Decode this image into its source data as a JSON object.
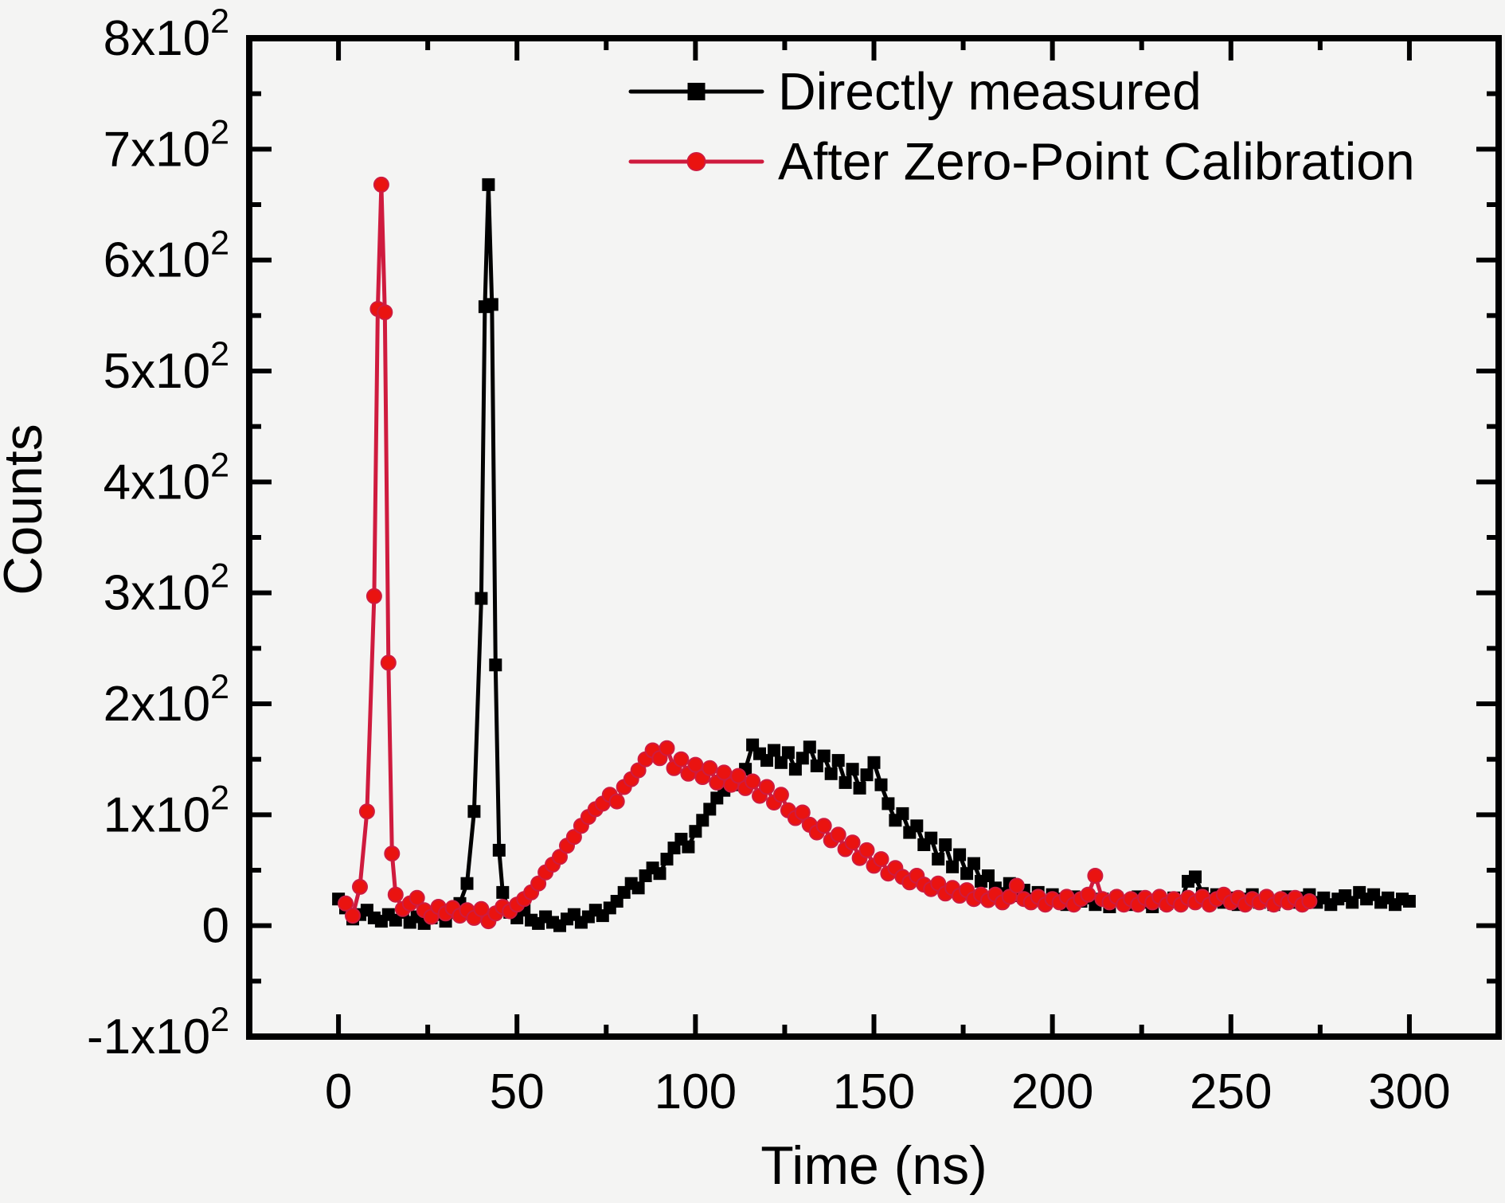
{
  "figure": {
    "background_color": "#f4f4f3",
    "frame_color": "#000000",
    "text_color": "#000000"
  },
  "chart_data": {
    "type": "line",
    "title": "",
    "xlabel": "Time (ns)",
    "ylabel": "Counts",
    "xlim": [
      -25,
      325
    ],
    "ylim": [
      -100,
      800
    ],
    "grid": false,
    "legend_position": "top-center-inside",
    "x_major_ticks": [
      0,
      50,
      100,
      150,
      200,
      250,
      300
    ],
    "x_major_tick_labels": [
      "0",
      "50",
      "100",
      "150",
      "200",
      "250",
      "300"
    ],
    "x_minor_tick_step": 25,
    "y_major_ticks": [
      -100,
      0,
      100,
      200,
      300,
      400,
      500,
      600,
      700,
      800
    ],
    "y_major_tick_labels": [
      "-1x10^2",
      "0",
      "1x10^2",
      "2x10^2",
      "3x10^2",
      "4x10^2",
      "5x10^2",
      "6x10^2",
      "7x10^2",
      "8x10^2"
    ],
    "y_minor_tick_step": 50,
    "series": [
      {
        "name": "Directly measured",
        "marker": "square",
        "line_color": "#000000",
        "marker_color": "#000000",
        "points": [
          [
            0,
            24
          ],
          [
            2,
            16
          ],
          [
            4,
            6
          ],
          [
            6,
            10
          ],
          [
            8,
            14
          ],
          [
            10,
            7
          ],
          [
            12,
            4
          ],
          [
            14,
            10
          ],
          [
            16,
            5
          ],
          [
            18,
            12
          ],
          [
            20,
            3
          ],
          [
            22,
            8
          ],
          [
            24,
            2
          ],
          [
            26,
            7
          ],
          [
            28,
            10
          ],
          [
            30,
            4
          ],
          [
            32,
            12
          ],
          [
            34,
            20
          ],
          [
            36,
            38
          ],
          [
            38,
            103
          ],
          [
            40,
            295
          ],
          [
            41,
            558
          ],
          [
            42,
            668
          ],
          [
            43,
            560
          ],
          [
            44,
            235
          ],
          [
            45,
            68
          ],
          [
            46,
            30
          ],
          [
            48,
            12
          ],
          [
            50,
            7
          ],
          [
            52,
            14
          ],
          [
            54,
            5
          ],
          [
            56,
            2
          ],
          [
            58,
            8
          ],
          [
            60,
            3
          ],
          [
            62,
            0
          ],
          [
            64,
            6
          ],
          [
            66,
            10
          ],
          [
            68,
            3
          ],
          [
            70,
            8
          ],
          [
            72,
            14
          ],
          [
            74,
            9
          ],
          [
            76,
            16
          ],
          [
            78,
            22
          ],
          [
            80,
            30
          ],
          [
            82,
            38
          ],
          [
            84,
            34
          ],
          [
            86,
            45
          ],
          [
            88,
            52
          ],
          [
            90,
            47
          ],
          [
            92,
            60
          ],
          [
            94,
            70
          ],
          [
            96,
            78
          ],
          [
            98,
            71
          ],
          [
            100,
            85
          ],
          [
            102,
            95
          ],
          [
            104,
            105
          ],
          [
            106,
            115
          ],
          [
            108,
            122
          ],
          [
            110,
            133
          ],
          [
            112,
            127
          ],
          [
            114,
            141
          ],
          [
            116,
            163
          ],
          [
            118,
            155
          ],
          [
            120,
            149
          ],
          [
            122,
            158
          ],
          [
            124,
            147
          ],
          [
            126,
            156
          ],
          [
            128,
            141
          ],
          [
            130,
            151
          ],
          [
            132,
            161
          ],
          [
            134,
            144
          ],
          [
            136,
            153
          ],
          [
            138,
            137
          ],
          [
            140,
            149
          ],
          [
            142,
            129
          ],
          [
            144,
            141
          ],
          [
            146,
            124
          ],
          [
            148,
            136
          ],
          [
            150,
            147
          ],
          [
            152,
            127
          ],
          [
            154,
            110
          ],
          [
            156,
            95
          ],
          [
            158,
            101
          ],
          [
            160,
            84
          ],
          [
            162,
            90
          ],
          [
            164,
            73
          ],
          [
            166,
            79
          ],
          [
            168,
            60
          ],
          [
            170,
            73
          ],
          [
            172,
            53
          ],
          [
            174,
            64
          ],
          [
            176,
            47
          ],
          [
            178,
            56
          ],
          [
            180,
            40
          ],
          [
            182,
            45
          ],
          [
            184,
            34
          ],
          [
            186,
            29
          ],
          [
            188,
            38
          ],
          [
            190,
            27
          ],
          [
            192,
            32
          ],
          [
            194,
            24
          ],
          [
            196,
            30
          ],
          [
            198,
            21
          ],
          [
            200,
            28
          ],
          [
            202,
            24
          ],
          [
            204,
            19
          ],
          [
            206,
            26
          ],
          [
            208,
            22
          ],
          [
            210,
            25
          ],
          [
            212,
            19
          ],
          [
            214,
            24
          ],
          [
            216,
            17
          ],
          [
            218,
            25
          ],
          [
            220,
            22
          ],
          [
            222,
            19
          ],
          [
            224,
            26
          ],
          [
            226,
            21
          ],
          [
            228,
            17
          ],
          [
            230,
            24
          ],
          [
            232,
            20
          ],
          [
            234,
            25
          ],
          [
            236,
            22
          ],
          [
            238,
            40
          ],
          [
            240,
            44
          ],
          [
            242,
            29
          ],
          [
            244,
            24
          ],
          [
            246,
            28
          ],
          [
            248,
            21
          ],
          [
            250,
            25
          ],
          [
            252,
            19
          ],
          [
            254,
            24
          ],
          [
            256,
            28
          ],
          [
            258,
            21
          ],
          [
            260,
            25
          ],
          [
            262,
            19
          ],
          [
            264,
            23
          ],
          [
            266,
            26
          ],
          [
            268,
            21
          ],
          [
            270,
            25
          ],
          [
            272,
            28
          ],
          [
            274,
            21
          ],
          [
            276,
            25
          ],
          [
            278,
            19
          ],
          [
            280,
            24
          ],
          [
            282,
            27
          ],
          [
            284,
            21
          ],
          [
            286,
            30
          ],
          [
            288,
            24
          ],
          [
            290,
            28
          ],
          [
            292,
            21
          ],
          [
            294,
            25
          ],
          [
            296,
            19
          ],
          [
            298,
            24
          ],
          [
            300,
            22
          ]
        ]
      },
      {
        "name": "After Zero-Point Calibration",
        "marker": "circle",
        "line_color": "#cf1b3e",
        "marker_color": "#ea1310",
        "points": [
          [
            2,
            20
          ],
          [
            4,
            9
          ],
          [
            6,
            35
          ],
          [
            8,
            103
          ],
          [
            10,
            297
          ],
          [
            11,
            556
          ],
          [
            12,
            668
          ],
          [
            13,
            553
          ],
          [
            14,
            237
          ],
          [
            15,
            65
          ],
          [
            16,
            28
          ],
          [
            18,
            15
          ],
          [
            20,
            20
          ],
          [
            22,
            25
          ],
          [
            24,
            14
          ],
          [
            26,
            8
          ],
          [
            28,
            17
          ],
          [
            30,
            11
          ],
          [
            32,
            16
          ],
          [
            34,
            9
          ],
          [
            36,
            14
          ],
          [
            38,
            7
          ],
          [
            40,
            15
          ],
          [
            42,
            4
          ],
          [
            44,
            11
          ],
          [
            46,
            17
          ],
          [
            48,
            13
          ],
          [
            50,
            19
          ],
          [
            52,
            24
          ],
          [
            54,
            30
          ],
          [
            56,
            38
          ],
          [
            58,
            48
          ],
          [
            60,
            55
          ],
          [
            62,
            62
          ],
          [
            64,
            72
          ],
          [
            66,
            80
          ],
          [
            68,
            90
          ],
          [
            70,
            98
          ],
          [
            72,
            105
          ],
          [
            74,
            110
          ],
          [
            76,
            118
          ],
          [
            78,
            112
          ],
          [
            80,
            125
          ],
          [
            82,
            132
          ],
          [
            84,
            140
          ],
          [
            86,
            150
          ],
          [
            88,
            158
          ],
          [
            90,
            151
          ],
          [
            92,
            160
          ],
          [
            94,
            142
          ],
          [
            96,
            150
          ],
          [
            98,
            137
          ],
          [
            100,
            145
          ],
          [
            102,
            134
          ],
          [
            104,
            142
          ],
          [
            106,
            129
          ],
          [
            108,
            138
          ],
          [
            110,
            127
          ],
          [
            112,
            135
          ],
          [
            114,
            124
          ],
          [
            116,
            130
          ],
          [
            118,
            117
          ],
          [
            120,
            125
          ],
          [
            122,
            111
          ],
          [
            124,
            118
          ],
          [
            126,
            104
          ],
          [
            128,
            97
          ],
          [
            130,
            102
          ],
          [
            132,
            91
          ],
          [
            134,
            84
          ],
          [
            136,
            90
          ],
          [
            138,
            77
          ],
          [
            140,
            82
          ],
          [
            142,
            69
          ],
          [
            144,
            75
          ],
          [
            146,
            61
          ],
          [
            148,
            68
          ],
          [
            150,
            54
          ],
          [
            152,
            60
          ],
          [
            154,
            47
          ],
          [
            156,
            52
          ],
          [
            158,
            44
          ],
          [
            160,
            39
          ],
          [
            162,
            45
          ],
          [
            164,
            37
          ],
          [
            166,
            33
          ],
          [
            168,
            38
          ],
          [
            170,
            29
          ],
          [
            172,
            34
          ],
          [
            174,
            27
          ],
          [
            176,
            32
          ],
          [
            178,
            24
          ],
          [
            180,
            28
          ],
          [
            182,
            23
          ],
          [
            184,
            28
          ],
          [
            186,
            21
          ],
          [
            188,
            26
          ],
          [
            190,
            36
          ],
          [
            192,
            24
          ],
          [
            194,
            21
          ],
          [
            196,
            26
          ],
          [
            198,
            19
          ],
          [
            200,
            24
          ],
          [
            202,
            21
          ],
          [
            204,
            26
          ],
          [
            206,
            19
          ],
          [
            208,
            24
          ],
          [
            210,
            28
          ],
          [
            212,
            45
          ],
          [
            214,
            24
          ],
          [
            216,
            21
          ],
          [
            218,
            26
          ],
          [
            220,
            19
          ],
          [
            222,
            24
          ],
          [
            224,
            19
          ],
          [
            226,
            25
          ],
          [
            228,
            21
          ],
          [
            230,
            26
          ],
          [
            232,
            19
          ],
          [
            234,
            24
          ],
          [
            236,
            19
          ],
          [
            238,
            25
          ],
          [
            240,
            21
          ],
          [
            242,
            26
          ],
          [
            244,
            19
          ],
          [
            246,
            24
          ],
          [
            248,
            28
          ],
          [
            250,
            21
          ],
          [
            252,
            25
          ],
          [
            254,
            19
          ],
          [
            256,
            24
          ],
          [
            258,
            21
          ],
          [
            260,
            26
          ],
          [
            262,
            19
          ],
          [
            264,
            24
          ],
          [
            266,
            21
          ],
          [
            268,
            25
          ],
          [
            270,
            19
          ],
          [
            272,
            22
          ]
        ]
      }
    ],
    "legend": {
      "entries": [
        "Directly measured",
        "After Zero-Point Calibration"
      ]
    }
  }
}
